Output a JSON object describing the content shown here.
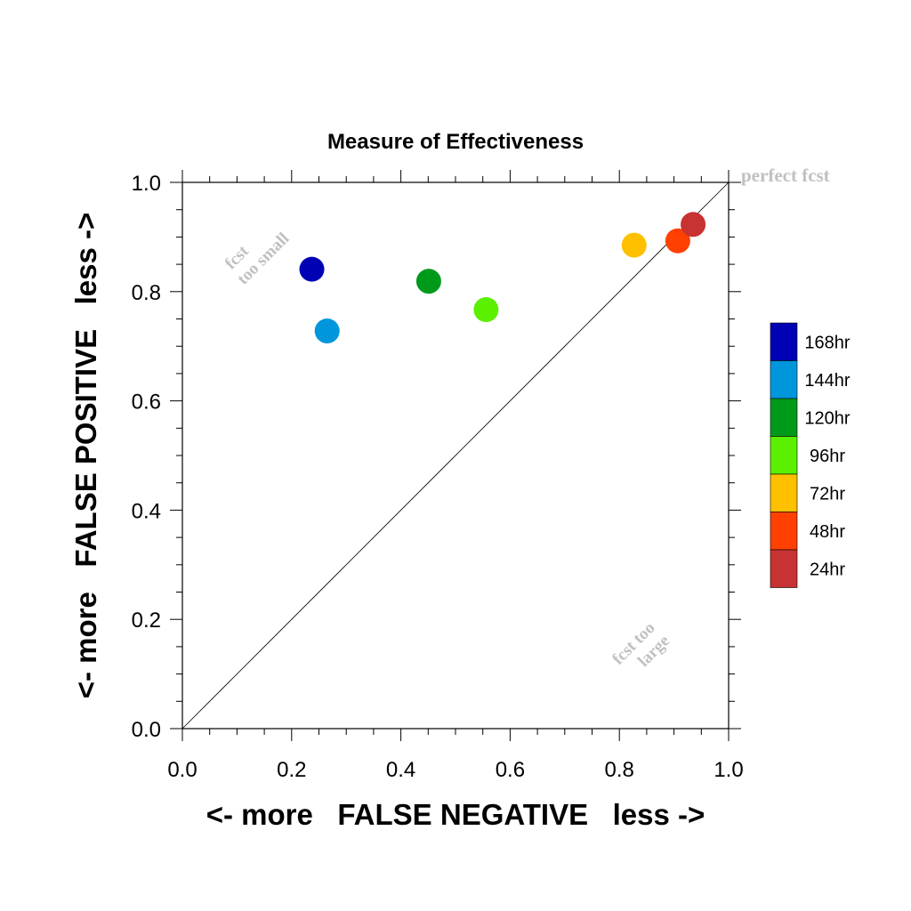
{
  "chart_data": {
    "type": "scatter",
    "title": "Measure of Effectiveness",
    "xlabel": "<- more   FALSE NEGATIVE   less ->",
    "ylabel": "<- more   FALSE POSITIVE   less ->",
    "xlim": [
      0.0,
      1.0
    ],
    "ylim": [
      0.0,
      1.0
    ],
    "x_ticks": [
      "0.0",
      "0.2",
      "0.4",
      "0.6",
      "0.8",
      "1.0"
    ],
    "y_ticks": [
      "0.0",
      "0.2",
      "0.4",
      "0.6",
      "0.8",
      "1.0"
    ],
    "grid": false,
    "diagonal_line": true,
    "legend_position": "right",
    "series": [
      {
        "name": "168hr",
        "color": "#0000b4",
        "x": 0.237,
        "y": 0.841
      },
      {
        "name": "144hr",
        "color": "#0096dc",
        "x": 0.265,
        "y": 0.728
      },
      {
        "name": "120hr",
        "color": "#009a1a",
        "x": 0.451,
        "y": 0.819
      },
      {
        "name": "96hr",
        "color": "#5af000",
        "x": 0.556,
        "y": 0.767
      },
      {
        "name": "72hr",
        "color": "#ffc000",
        "x": 0.827,
        "y": 0.885
      },
      {
        "name": "48hr",
        "color": "#ff4000",
        "x": 0.907,
        "y": 0.893
      },
      {
        "name": "24hr",
        "color": "#c83232",
        "x": 0.935,
        "y": 0.923
      }
    ],
    "annotations": {
      "perfect": "perfect fcst",
      "too_small_line1": "fcst",
      "too_small_line2": "too small",
      "too_large_line1": "fcst too",
      "too_large_line2": "large"
    }
  }
}
